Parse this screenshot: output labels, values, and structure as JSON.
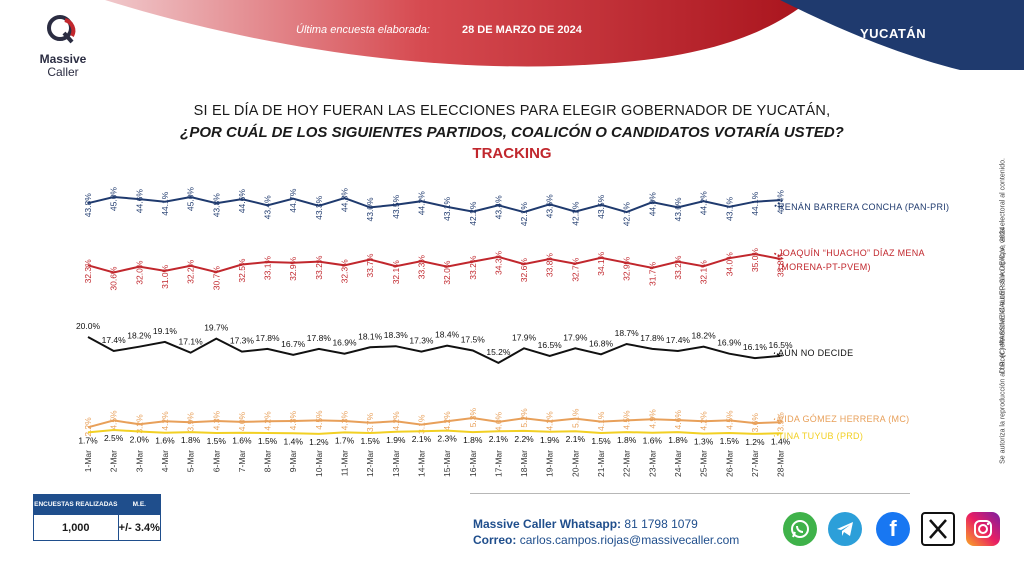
{
  "header": {
    "last_poll_label": "Última encuesta elaborada:",
    "last_poll_date": "28 DE MARZO DE 2024",
    "region": "YUCATÁN"
  },
  "logo": {
    "line1": "Massive",
    "line2": "Caller"
  },
  "question": {
    "line1": "SI EL DÍA DE HOY FUERAN LAS ELECCIONES PARA ELEGIR GOBERNADOR DE YUCATÁN,",
    "line2": "¿POR CUÁL DE LOS SIGUIENTES PARTIDOS, COALICÓN  O CANDIDATOS VOTARÍA USTED?",
    "tracking": "TRACKING"
  },
  "chart_data": {
    "type": "line",
    "title": "",
    "xlabel": "",
    "ylabel": "",
    "x": [
      "1-Mar",
      "2-Mar",
      "3-Mar",
      "4-Mar",
      "5-Mar",
      "6-Mar",
      "7-Mar",
      "8-Mar",
      "9-Mar",
      "10-Mar",
      "11-Mar",
      "12-Mar",
      "13-Mar",
      "14-Mar",
      "15-Mar",
      "16-Mar",
      "17-Mar",
      "18-Mar",
      "19-Mar",
      "20-Mar",
      "21-Mar",
      "22-Mar",
      "23-Mar",
      "24-Mar",
      "25-Mar",
      "26-Mar",
      "27-Mar",
      "28-Mar"
    ],
    "grid": false,
    "series": [
      {
        "name": "RENÁN BARRERA CONCHA (PAN-PRI)",
        "color": "#1f3a6e",
        "values": [
          43.8,
          45.0,
          44.6,
          44.1,
          45.0,
          43.8,
          44.6,
          43.4,
          44.7,
          43.3,
          44.8,
          43.0,
          43.5,
          44.2,
          43.1,
          42.2,
          43.4,
          42.1,
          43.6,
          42.2,
          43.5,
          42.1,
          44.0,
          43.0,
          44.2,
          43.1,
          44.1,
          44.4
        ],
        "labels": [
          "43.8%",
          "45.0%",
          "44.6%",
          "44.1%",
          "45.0%",
          "43.8%",
          "44.6%",
          "43.4%",
          "44.7%",
          "43.3%",
          "44.8%",
          "43.0%",
          "43.5%",
          "44.2%",
          "43.1%",
          "42.2%",
          "43.4%",
          "42.1%",
          "43.6%",
          "42.2%",
          "43.5%",
          "42.1%",
          "44.0%",
          "43.0%",
          "44.2%",
          "43.1%",
          "44.1%",
          "44.4%"
        ]
      },
      {
        "name": "JOAQUÍN “HUACHO” DÍAZ MENA (MORENA-PT-PVEM)",
        "legend_lines": [
          "JOAQUÍN “HUACHO” DÍAZ MENA",
          "(MORENA-PT-PVEM)"
        ],
        "color": "#c1272d",
        "values": [
          32.3,
          30.6,
          32.0,
          31.0,
          32.2,
          30.7,
          32.5,
          33.1,
          32.9,
          33.2,
          32.3,
          33.7,
          32.1,
          33.3,
          32.0,
          33.2,
          34.3,
          32.6,
          33.8,
          32.7,
          34.1,
          32.9,
          31.7,
          33.2,
          32.1,
          34.0,
          35.0,
          33.8
        ],
        "labels": [
          "32.3%",
          "30.6%",
          "32.0%",
          "31.0%",
          "32.2%",
          "30.7%",
          "32.5%",
          "33.1%",
          "32.9%",
          "33.2%",
          "32.3%",
          "33.7%",
          "32.1%",
          "33.3%",
          "32.0%",
          "33.2%",
          "34.3%",
          "32.6%",
          "33.8%",
          "32.7%",
          "34.1%",
          "32.9%",
          "31.7%",
          "33.2%",
          "32.1%",
          "34.0%",
          "35.0%",
          "33.8%"
        ]
      },
      {
        "name": "AÚN NO DECIDE",
        "color": "#111111",
        "values": [
          20.0,
          17.4,
          18.2,
          19.1,
          17.1,
          19.7,
          17.3,
          17.8,
          16.7,
          17.8,
          16.9,
          18.1,
          18.3,
          17.3,
          18.4,
          17.5,
          15.2,
          17.9,
          16.5,
          17.9,
          16.8,
          18.7,
          17.8,
          17.4,
          18.2,
          16.9,
          16.1,
          16.5
        ],
        "labels": [
          "20.0%",
          "17.4%",
          "18.2%",
          "19.1%",
          "17.1%",
          "19.7%",
          "17.3%",
          "17.8%",
          "16.7%",
          "17.8%",
          "16.9%",
          "18.1%",
          "18.3%",
          "17.3%",
          "18.4%",
          "17.5%",
          "15.2%",
          "17.9%",
          "16.5%",
          "17.9%",
          "16.8%",
          "18.7%",
          "17.8%",
          "17.4%",
          "18.2%",
          "16.9%",
          "16.1%",
          "16.5%"
        ]
      },
      {
        "name": "VIDA GÓMEZ HERRERA (MC)",
        "color": "#e8a05a",
        "values": [
          2.2,
          4.5,
          3.2,
          4.2,
          3.9,
          4.3,
          4.0,
          4.2,
          4.3,
          4.5,
          4.3,
          3.7,
          4.2,
          3.1,
          4.2,
          5.3,
          4.0,
          5.2,
          4.2,
          5.1,
          4.1,
          4.5,
          4.9,
          4.6,
          4.2,
          4.5,
          3.6,
          3.9
        ],
        "labels": [
          "2.2%",
          "4.5%",
          "3.2%",
          "4.2%",
          "3.9%",
          "4.3%",
          "4.0%",
          "4.2%",
          "4.3%",
          "4.5%",
          "4.3%",
          "3.7%",
          "4.2%",
          "3.1%",
          "4.2%",
          "5.3%",
          "4.0%",
          "5.2%",
          "4.2%",
          "5.1%",
          "4.1%",
          "4.5%",
          "4.9%",
          "4.6%",
          "4.2%",
          "4.5%",
          "3.6%",
          "3.9%"
        ]
      },
      {
        "name": "TINA TUYUB (PRD)",
        "color": "#f2d024",
        "values": [
          1.7,
          2.5,
          2.0,
          1.6,
          1.8,
          1.5,
          1.6,
          1.5,
          1.4,
          1.2,
          1.7,
          1.5,
          1.9,
          2.1,
          2.3,
          1.8,
          2.1,
          2.2,
          1.9,
          2.1,
          1.5,
          1.8,
          1.6,
          1.8,
          1.3,
          1.5,
          1.2,
          1.4
        ],
        "labels": [
          "1.7%",
          "2.5%",
          "2.0%",
          "1.6%",
          "1.8%",
          "1.5%",
          "1.6%",
          "1.5%",
          "1.4%",
          "1.2%",
          "1.7%",
          "1.5%",
          "1.9%",
          "2.1%",
          "2.3%",
          "1.8%",
          "2.1%",
          "2.2%",
          "1.9%",
          "2.1%",
          "1.5%",
          "1.8%",
          "1.6%",
          "1.8%",
          "1.3%",
          "1.5%",
          "1.2%",
          "1.4%"
        ]
      }
    ]
  },
  "side_note": {
    "line1": "D.R. (C) MASSIVE CALLER S.A DE C.V., 2024",
    "line2": "Se autoriza la reproducción al hacer referencia del autor, salvo aplique veda electoral al contenido."
  },
  "stats": {
    "h1": "ENCUESTAS REALIZADAS",
    "h2": "M.E.",
    "v1": "1,000",
    "v2": "+/- 3.4%"
  },
  "contact": {
    "whatsapp_label": "Massive Caller Whatsapp:",
    "whatsapp_number": "81 1798 1079",
    "email_label": "Correo:",
    "email": "carlos.campos.riojas@massivecaller.com"
  },
  "social_icons": [
    "whatsapp-icon",
    "telegram-icon",
    "facebook-icon",
    "x-icon",
    "instagram-icon"
  ],
  "colors": {
    "accent_red": "#c1272d",
    "navy": "#1f3a6e",
    "table_blue": "#1f4e8c"
  }
}
